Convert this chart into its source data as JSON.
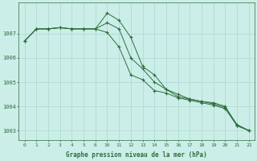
{
  "title": "Graphe pression niveau de la mer (hPa)",
  "bg_color": "#cceee8",
  "line_color": "#2d6e3e",
  "grid_color": "#aad8d0",
  "series": [
    {
      "hours": [
        0,
        1,
        2,
        3,
        4,
        5,
        6,
        10,
        11,
        12,
        13,
        14,
        15,
        16,
        17,
        18,
        19,
        20,
        21,
        22
      ],
      "y": [
        1006.7,
        1007.2,
        1007.2,
        1007.25,
        1007.2,
        1007.2,
        1007.2,
        1007.85,
        1007.55,
        1006.85,
        1005.65,
        1005.3,
        1004.7,
        1004.5,
        1004.3,
        1004.2,
        1004.15,
        1004.0,
        1003.2,
        1003.0
      ]
    },
    {
      "hours": [
        0,
        1,
        2,
        3,
        4,
        5,
        6,
        10,
        11,
        12,
        13,
        14,
        15,
        16,
        17,
        18,
        19,
        20,
        21,
        22
      ],
      "y": [
        1006.7,
        1007.2,
        1007.2,
        1007.25,
        1007.2,
        1007.2,
        1007.2,
        1007.45,
        1007.2,
        1006.0,
        1005.55,
        1005.0,
        1004.7,
        1004.4,
        1004.3,
        1004.2,
        1004.1,
        1003.95,
        1003.25,
        1003.0
      ]
    },
    {
      "hours": [
        0,
        1,
        2,
        3,
        4,
        5,
        6,
        10,
        11,
        12,
        13,
        14,
        15,
        16,
        17,
        18,
        19,
        20,
        21,
        22
      ],
      "y": [
        1006.7,
        1007.2,
        1007.2,
        1007.25,
        1007.2,
        1007.2,
        1007.2,
        1007.05,
        1006.45,
        1005.3,
        1005.1,
        1004.65,
        1004.55,
        1004.35,
        1004.25,
        1004.15,
        1004.05,
        1003.9,
        1003.2,
        1003.0
      ]
    }
  ],
  "hour_sequence": [
    0,
    1,
    2,
    3,
    4,
    5,
    6,
    10,
    11,
    12,
    13,
    14,
    15,
    16,
    17,
    18,
    19,
    20,
    21,
    22
  ],
  "xtick_labels": [
    "0",
    "1",
    "2",
    "3",
    "4",
    "5",
    "6",
    "10",
    "11",
    "12",
    "13",
    "14",
    "15",
    "16",
    "17",
    "18",
    "19",
    "20",
    "21",
    "22"
  ],
  "yticks": [
    1003,
    1004,
    1005,
    1006,
    1007
  ],
  "ylim": [
    1002.6,
    1008.3
  ]
}
